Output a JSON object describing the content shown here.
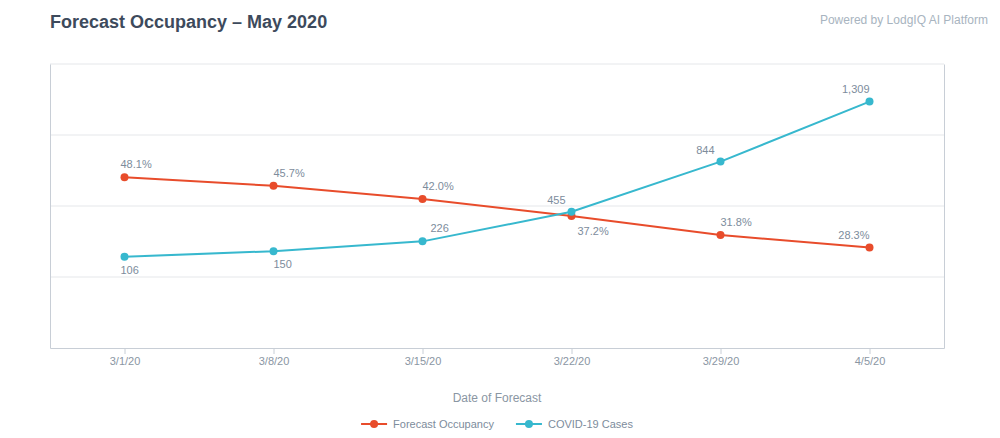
{
  "chart_data": {
    "type": "line",
    "title": "Forecast Occupancy – May 2020",
    "subtitle": "Powered by LodgIQ AI Platform",
    "x_label": "Date of Forecast",
    "categories": [
      "3/1/20",
      "3/8/20",
      "3/15/20",
      "3/22/20",
      "3/29/20",
      "4/5/20"
    ],
    "series": [
      {
        "name": "Forecast Occupancy",
        "color": "#e84c2b",
        "marker": "circle",
        "values": [
          48.1,
          45.7,
          42.0,
          37.2,
          31.8,
          28.3
        ],
        "value_labels": [
          "48.1%",
          "45.7%",
          "42.0%",
          "37.2%",
          "31.8%",
          "28.3%"
        ]
      },
      {
        "name": "COVID-19 Cases",
        "color": "#37b8ce",
        "marker": "circle",
        "axis": "y2",
        "values": [
          106,
          150,
          226,
          455,
          844,
          1309
        ],
        "value_labels": [
          "106",
          "150",
          "226",
          "455",
          "844",
          "1,309"
        ]
      }
    ],
    "ylim": [
      0,
      80
    ],
    "yticks": [
      20,
      40,
      60,
      80
    ],
    "y2lim": [
      -600,
      1600
    ],
    "grid": true,
    "legend": "bottom",
    "data_labels": true,
    "tick_labels": "x"
  }
}
